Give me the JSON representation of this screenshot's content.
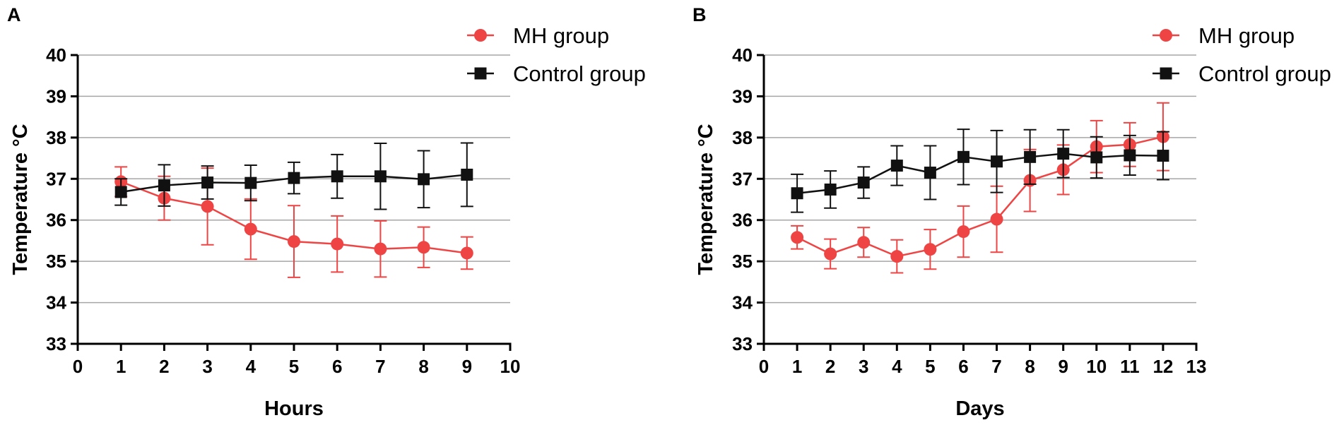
{
  "colors": {
    "mh": "#ef4444",
    "control": "#111111",
    "grid": "#a6a6a6",
    "axis": "#000000"
  },
  "chart_data": [
    {
      "panel_label": "A",
      "type": "line",
      "xlabel": "Hours",
      "ylabel": "Temperature °C",
      "xlim": [
        0,
        10
      ],
      "ylim": [
        33,
        40
      ],
      "xticks": [
        0,
        1,
        2,
        3,
        4,
        5,
        6,
        7,
        8,
        9,
        10
      ],
      "yticks": [
        33,
        34,
        35,
        36,
        37,
        38,
        39,
        40
      ],
      "grid": true,
      "legend": "top-right",
      "series": [
        {
          "name": "MH group",
          "marker": "circle",
          "x": [
            1,
            2,
            3,
            4,
            5,
            6,
            7,
            8,
            9
          ],
          "y": [
            36.93,
            36.53,
            36.33,
            35.78,
            35.48,
            35.42,
            35.3,
            35.34,
            35.2
          ],
          "err": [
            0.36,
            0.53,
            0.93,
            0.73,
            0.87,
            0.68,
            0.68,
            0.49,
            0.39
          ]
        },
        {
          "name": "Control group",
          "marker": "square",
          "x": [
            1,
            2,
            3,
            4,
            5,
            6,
            7,
            8,
            9
          ],
          "y": [
            36.68,
            36.84,
            36.91,
            36.9,
            37.02,
            37.06,
            37.06,
            36.99,
            37.1
          ],
          "err": [
            0.32,
            0.5,
            0.4,
            0.43,
            0.38,
            0.53,
            0.8,
            0.69,
            0.77
          ]
        }
      ]
    },
    {
      "panel_label": "B",
      "type": "line",
      "xlabel": "Days",
      "ylabel": "Temperature °C",
      "xlim": [
        0,
        13
      ],
      "ylim": [
        33,
        40
      ],
      "xticks": [
        0,
        1,
        2,
        3,
        4,
        5,
        6,
        7,
        8,
        9,
        10,
        11,
        12,
        13
      ],
      "yticks": [
        33,
        34,
        35,
        36,
        37,
        38,
        39,
        40
      ],
      "grid": true,
      "legend": "top-right",
      "series": [
        {
          "name": "MH group",
          "marker": "circle",
          "x": [
            1,
            2,
            3,
            4,
            5,
            6,
            7,
            8,
            9,
            10,
            11,
            12
          ],
          "y": [
            35.58,
            35.18,
            35.46,
            35.12,
            35.29,
            35.72,
            36.02,
            36.96,
            37.22,
            37.78,
            37.83,
            38.02
          ],
          "err": [
            0.28,
            0.36,
            0.36,
            0.4,
            0.48,
            0.62,
            0.8,
            0.75,
            0.6,
            0.63,
            0.53,
            0.82
          ]
        },
        {
          "name": "Control group",
          "marker": "square",
          "x": [
            1,
            2,
            3,
            4,
            5,
            6,
            7,
            8,
            9,
            10,
            11,
            12
          ],
          "y": [
            36.65,
            36.74,
            36.91,
            37.32,
            37.15,
            37.53,
            37.42,
            37.53,
            37.61,
            37.52,
            37.57,
            37.56
          ],
          "err": [
            0.46,
            0.45,
            0.38,
            0.48,
            0.65,
            0.67,
            0.75,
            0.66,
            0.58,
            0.5,
            0.48,
            0.58
          ]
        }
      ]
    }
  ]
}
